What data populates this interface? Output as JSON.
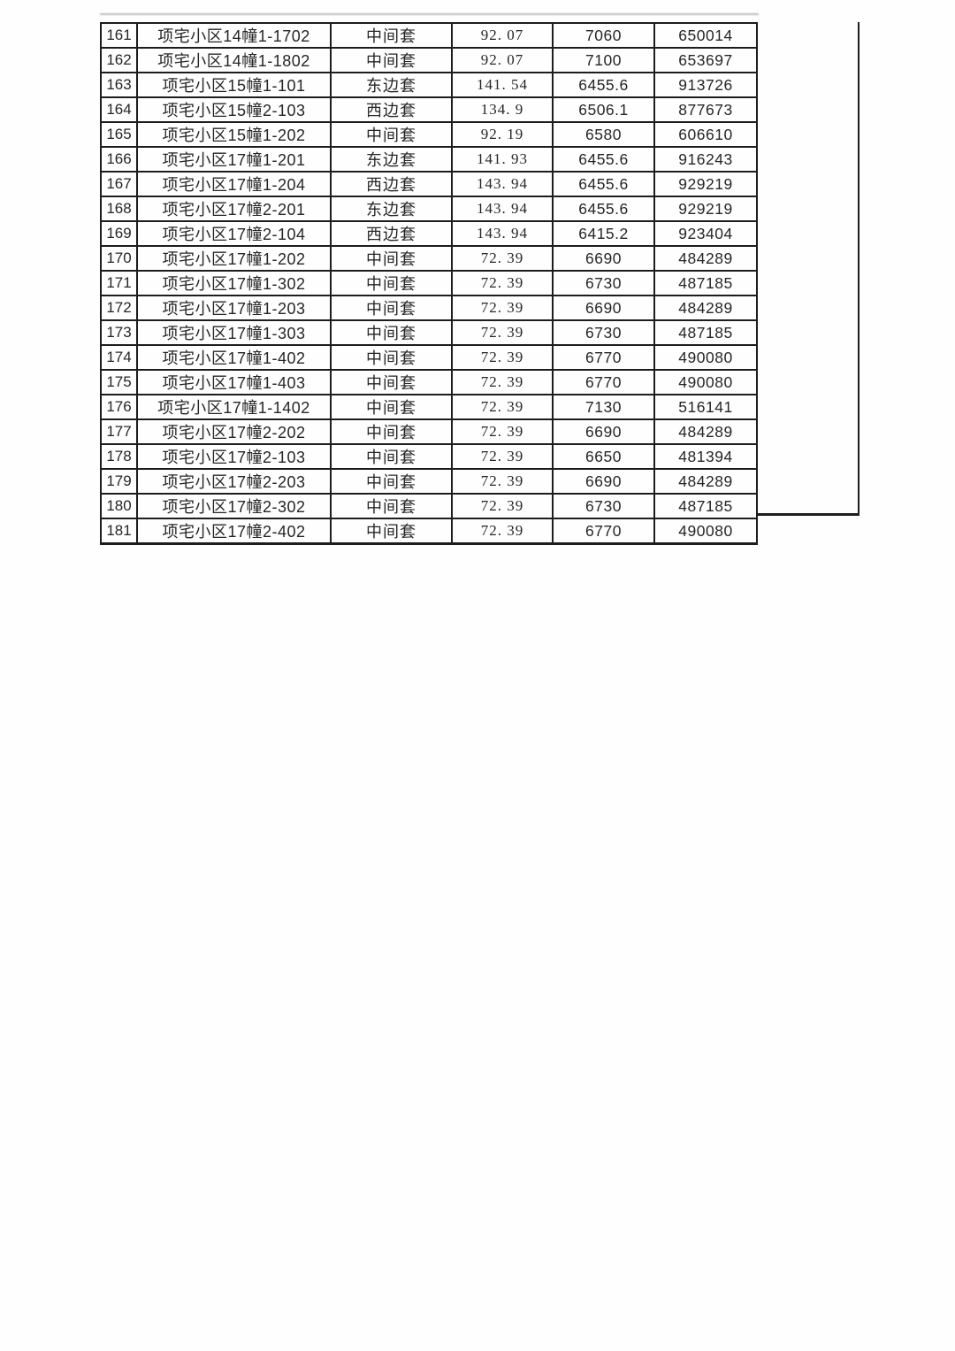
{
  "table": {
    "rows": [
      {
        "no": "161",
        "name": "项宅小区14幢1-1702",
        "type": "中间套",
        "area": "92. 07",
        "unit_price": "7060",
        "total_price": "650014"
      },
      {
        "no": "162",
        "name": "项宅小区14幢1-1802",
        "type": "中间套",
        "area": "92. 07",
        "unit_price": "7100",
        "total_price": "653697"
      },
      {
        "no": "163",
        "name": "项宅小区15幢1-101",
        "type": "东边套",
        "area": "141. 54",
        "unit_price": "6455.6",
        "total_price": "913726"
      },
      {
        "no": "164",
        "name": "项宅小区15幢2-103",
        "type": "西边套",
        "area": "134. 9",
        "unit_price": "6506.1",
        "total_price": "877673"
      },
      {
        "no": "165",
        "name": "项宅小区15幢1-202",
        "type": "中间套",
        "area": "92. 19",
        "unit_price": "6580",
        "total_price": "606610"
      },
      {
        "no": "166",
        "name": "项宅小区17幢1-201",
        "type": "东边套",
        "area": "141. 93",
        "unit_price": "6455.6",
        "total_price": "916243"
      },
      {
        "no": "167",
        "name": "项宅小区17幢1-204",
        "type": "西边套",
        "area": "143. 94",
        "unit_price": "6455.6",
        "total_price": "929219"
      },
      {
        "no": "168",
        "name": "项宅小区17幢2-201",
        "type": "东边套",
        "area": "143. 94",
        "unit_price": "6455.6",
        "total_price": "929219"
      },
      {
        "no": "169",
        "name": "项宅小区17幢2-104",
        "type": "西边套",
        "area": "143. 94",
        "unit_price": "6415.2",
        "total_price": "923404"
      },
      {
        "no": "170",
        "name": "项宅小区17幢1-202",
        "type": "中间套",
        "area": "72. 39",
        "unit_price": "6690",
        "total_price": "484289"
      },
      {
        "no": "171",
        "name": "项宅小区17幢1-302",
        "type": "中间套",
        "area": "72. 39",
        "unit_price": "6730",
        "total_price": "487185"
      },
      {
        "no": "172",
        "name": "项宅小区17幢1-203",
        "type": "中间套",
        "area": "72. 39",
        "unit_price": "6690",
        "total_price": "484289"
      },
      {
        "no": "173",
        "name": "项宅小区17幢1-303",
        "type": "中间套",
        "area": "72. 39",
        "unit_price": "6730",
        "total_price": "487185"
      },
      {
        "no": "174",
        "name": "项宅小区17幢1-402",
        "type": "中间套",
        "area": "72. 39",
        "unit_price": "6770",
        "total_price": "490080"
      },
      {
        "no": "175",
        "name": "项宅小区17幢1-403",
        "type": "中间套",
        "area": "72. 39",
        "unit_price": "6770",
        "total_price": "490080"
      },
      {
        "no": "176",
        "name": "项宅小区17幢1-1402",
        "type": "中间套",
        "area": "72. 39",
        "unit_price": "7130",
        "total_price": "516141"
      },
      {
        "no": "177",
        "name": "项宅小区17幢2-202",
        "type": "中间套",
        "area": "72. 39",
        "unit_price": "6690",
        "total_price": "484289"
      },
      {
        "no": "178",
        "name": "项宅小区17幢2-103",
        "type": "中间套",
        "area": "72. 39",
        "unit_price": "6650",
        "total_price": "481394"
      },
      {
        "no": "179",
        "name": "项宅小区17幢2-203",
        "type": "中间套",
        "area": "72. 39",
        "unit_price": "6690",
        "total_price": "484289"
      },
      {
        "no": "180",
        "name": "项宅小区17幢2-302",
        "type": "中间套",
        "area": "72. 39",
        "unit_price": "6730",
        "total_price": "487185"
      },
      {
        "no": "181",
        "name": "项宅小区17幢2-402",
        "type": "中间套",
        "area": "72. 39",
        "unit_price": "6770",
        "total_price": "490080"
      }
    ],
    "colors": {
      "border": "#1d1d1d",
      "text": "#262626",
      "background": "#fefefe"
    }
  }
}
